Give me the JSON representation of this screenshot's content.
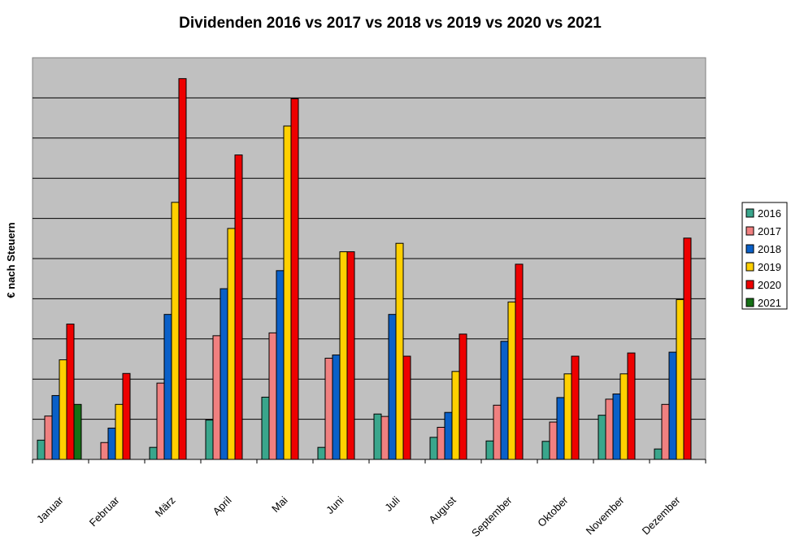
{
  "chart_data": {
    "type": "bar",
    "title": "Dividenden 2016 vs 2017 vs 2018 vs 2019 vs 2020 vs 2021",
    "xlabel": "",
    "ylabel": "€ nach Steuern",
    "ylim": [
      0,
      10
    ],
    "grid": true,
    "legend_position": "right",
    "categories": [
      "Januar",
      "Februar",
      "März",
      "April",
      "Mai",
      "Juni",
      "Juli",
      "August",
      "September",
      "Oktober",
      "November",
      "Dezember"
    ],
    "series": [
      {
        "name": "2016",
        "color": "#3aa68c",
        "values": [
          0.48,
          0,
          0.3,
          0.98,
          1.55,
          0.3,
          1.13,
          0.55,
          0.46,
          0.45,
          1.1,
          0.26
        ]
      },
      {
        "name": "2017",
        "color": "#f08080",
        "values": [
          1.08,
          0.42,
          1.9,
          3.08,
          3.15,
          2.52,
          1.07,
          0.8,
          1.35,
          0.93,
          1.5,
          1.37
        ]
      },
      {
        "name": "2018",
        "color": "#0a60c8",
        "values": [
          1.59,
          0.78,
          3.61,
          4.25,
          4.7,
          2.6,
          3.61,
          1.17,
          2.94,
          1.54,
          1.63,
          2.67
        ]
      },
      {
        "name": "2019",
        "color": "#ffd000",
        "values": [
          2.48,
          1.37,
          6.4,
          5.75,
          8.3,
          5.17,
          5.38,
          2.19,
          3.92,
          2.13,
          2.13,
          3.98
        ]
      },
      {
        "name": "2020",
        "color": "#ee0000",
        "values": [
          3.37,
          2.14,
          9.48,
          7.58,
          8.98,
          5.17,
          2.57,
          3.12,
          4.86,
          2.57,
          2.65,
          5.51
        ]
      },
      {
        "name": "2021",
        "color": "#157015",
        "values": [
          1.37,
          0,
          0,
          0,
          0,
          0,
          0,
          0,
          0,
          0,
          0,
          0
        ]
      }
    ]
  }
}
